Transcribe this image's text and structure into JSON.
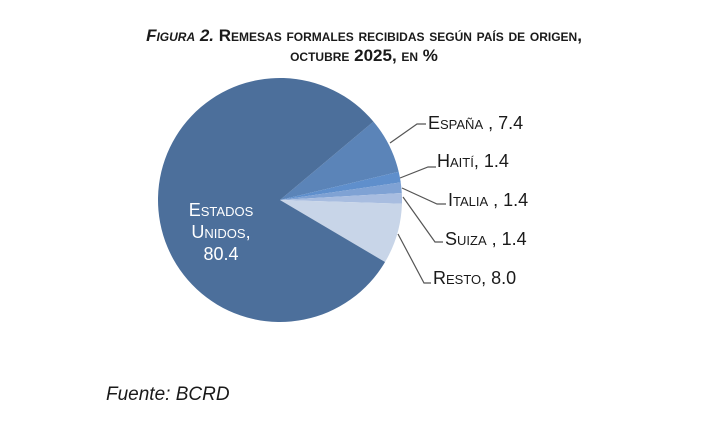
{
  "title": {
    "figure_label": "Figura 2.",
    "line1_rest": "Remesas formales recibidas según país de origen,",
    "line2": "octubre 2025, en %"
  },
  "chart_data": {
    "type": "pie",
    "title": "Figura 2. Remesas formales recibidas según país de origen, octubre 2025, en %",
    "categories": [
      "Estados Unidos",
      "España",
      "Haití",
      "Italia",
      "Suiza",
      "Resto"
    ],
    "values": [
      80.4,
      7.4,
      1.4,
      1.4,
      1.4,
      8.0
    ],
    "colors": [
      "#4c6f9b",
      "#5b84b8",
      "#5f8fcc",
      "#7fa2d4",
      "#a8bde0",
      "#c8d5e8"
    ],
    "labels": [
      {
        "name": "Estados Unidos",
        "text_lines": [
          "Estados",
          "Unidos,",
          "80.4"
        ]
      },
      {
        "name": "España",
        "text": "España , 7.4"
      },
      {
        "name": "Haití",
        "text": "Haití, 1.4"
      },
      {
        "name": "Italia",
        "text": "Italia , 1.4"
      },
      {
        "name": "Suiza",
        "text": "Suiza , 1.4"
      },
      {
        "name": "Resto",
        "text": "Resto, 8.0"
      }
    ],
    "xlabel": "",
    "ylabel": "",
    "legend": "none",
    "unit": "%"
  },
  "source": "Fuente: BCRD"
}
